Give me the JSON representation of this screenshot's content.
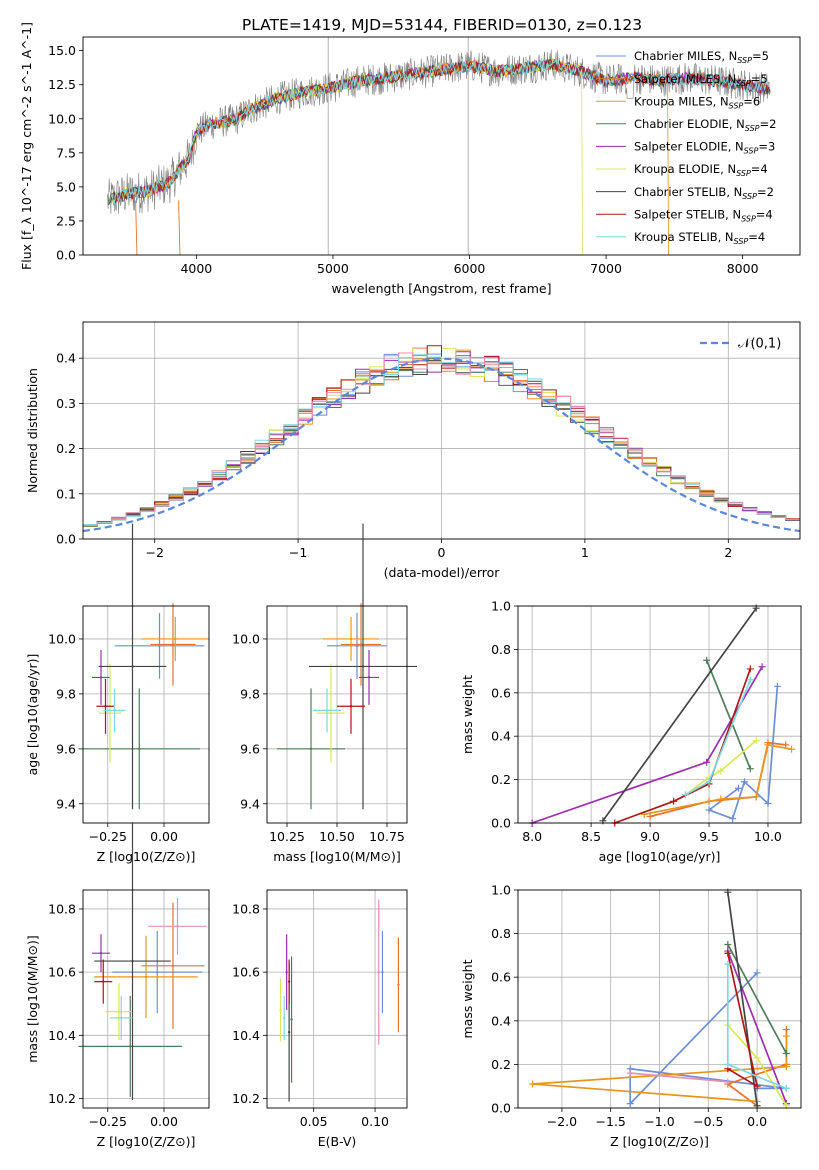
{
  "figure_title": "PLATE=1419, MJD=53144, FIBERID=0130, z=0.123",
  "models": [
    {
      "name": "Chabrier MILES",
      "nssp": "5",
      "color": "#6b8fd6"
    },
    {
      "name": "Salpeter MILES",
      "nssp": "5",
      "color": "#e8722a"
    },
    {
      "name": "Kroupa MILES",
      "nssp": "6",
      "color": "#e8951c"
    },
    {
      "name": "Chabrier ELODIE",
      "nssp": "2",
      "color": "#4f7d5b"
    },
    {
      "name": "Salpeter ELODIE",
      "nssp": "3",
      "color": "#9b2fae"
    },
    {
      "name": "Kroupa ELODIE",
      "nssp": "4",
      "color": "#d9e85a"
    },
    {
      "name": "Chabrier STELIB",
      "nssp": "2",
      "color": "#444444"
    },
    {
      "name": "Salpeter STELIB",
      "nssp": "4",
      "color": "#b01515"
    },
    {
      "name": "Kroupa STELIB",
      "nssp": "4",
      "color": "#7fd8df"
    }
  ],
  "chart_data": [
    {
      "id": "spectrum",
      "type": "line",
      "xlabel": "wavelength [Angstrom, rest frame]",
      "ylabel": "Flux [f_λ 10^-17 erg cm^-2 s^-1 A^-1]",
      "xlim": [
        3170,
        8420
      ],
      "ylim": [
        0,
        16
      ],
      "xticks": [
        4000,
        5000,
        6000,
        7000,
        8000
      ],
      "yticks": [
        0.0,
        2.5,
        5.0,
        7.5,
        10.0,
        12.5,
        15.0
      ],
      "grid": false,
      "legend": "right",
      "continuum": {
        "x": [
          3350,
          3500,
          3650,
          3800,
          3950,
          4000,
          4100,
          4200,
          4300,
          4400,
          4600,
          4800,
          5000,
          5200,
          5400,
          5600,
          5800,
          6000,
          6200,
          6400,
          6600,
          6800,
          7000,
          7200,
          7400,
          7600,
          7800,
          8000,
          8200
        ],
        "y": [
          4.0,
          4.5,
          4.7,
          5.3,
          7.2,
          9.0,
          9.6,
          9.8,
          10.0,
          10.7,
          11.5,
          12.0,
          12.3,
          12.8,
          13.0,
          13.3,
          13.6,
          13.9,
          13.5,
          13.7,
          14.0,
          13.5,
          12.8,
          13.0,
          12.8,
          13.0,
          12.8,
          12.5,
          12.2
        ]
      }
    },
    {
      "id": "residuals",
      "type": "bar",
      "xlabel": "(data-model)/error",
      "ylabel": "Normed distribution",
      "xlim": [
        -2.5,
        2.5
      ],
      "ylim": [
        0,
        0.48
      ],
      "xticks": [
        -2,
        -1,
        0,
        1,
        2
      ],
      "yticks": [
        0.0,
        0.1,
        0.2,
        0.3,
        0.4
      ],
      "grid": true,
      "legend": "top-right",
      "gaussian_label": "𝒩(0,1)",
      "bin_width": 0.1
    },
    {
      "id": "age_vs_Z",
      "type": "scatter",
      "xlabel": "Z [log10(Z/Z⊙)]",
      "ylabel": "age  [log10(age/yr)]",
      "xlim": [
        -0.36,
        0.2
      ],
      "ylim": [
        9.33,
        10.12
      ],
      "xticks": [
        -0.25,
        0.0
      ],
      "xticklabels": [
        "−0.25",
        "0.00"
      ],
      "yticks": [
        9.4,
        9.6,
        9.8,
        10.0
      ],
      "grid": true,
      "points": [
        {
          "model": 0,
          "x": -0.02,
          "xerr": 0.2,
          "y": 9.975,
          "yerr": 0.12
        },
        {
          "model": 1,
          "x": 0.04,
          "xerr": 0.1,
          "y": 9.98,
          "yerr": 0.15
        },
        {
          "model": 2,
          "x": 0.05,
          "xerr": 0.15,
          "y": 10.0,
          "yerr": 0.08
        },
        {
          "model": 3,
          "x": -0.11,
          "xerr": 0.27,
          "y": 9.6,
          "yerr": 0.22
        },
        {
          "model": 4,
          "x": -0.28,
          "xerr": 0.04,
          "y": 9.86,
          "yerr": 0.1
        },
        {
          "model": 5,
          "x": -0.24,
          "xerr": 0.05,
          "y": 9.73,
          "yerr": 0.18
        },
        {
          "model": 6,
          "x": -0.14,
          "xerr": 0.15,
          "y": 9.9,
          "yerr": 0.52
        },
        {
          "model": 7,
          "x": -0.26,
          "xerr": 0.04,
          "y": 9.755,
          "yerr": 0.1
        },
        {
          "model": 8,
          "x": -0.22,
          "xerr": 0.05,
          "y": 9.74,
          "yerr": 0.08
        }
      ]
    },
    {
      "id": "age_vs_mass",
      "type": "scatter",
      "xlabel": "mass [log10(M/M⊙)]",
      "ylabel": "",
      "xlim": [
        10.15,
        10.85
      ],
      "ylim": [
        9.33,
        10.12
      ],
      "xticks": [
        10.25,
        10.5,
        10.75
      ],
      "yticks": [
        9.4,
        9.6,
        9.8,
        10.0
      ],
      "grid": true,
      "points": [
        {
          "model": 0,
          "x": 10.6,
          "xerr": 0.15,
          "y": 9.975,
          "yerr": 0.12
        },
        {
          "model": 1,
          "x": 10.62,
          "xerr": 0.1,
          "y": 9.98,
          "yerr": 0.15
        },
        {
          "model": 2,
          "x": 10.57,
          "xerr": 0.14,
          "y": 10.0,
          "yerr": 0.08
        },
        {
          "model": 3,
          "x": 10.37,
          "xerr": 0.17,
          "y": 9.6,
          "yerr": 0.22
        },
        {
          "model": 4,
          "x": 10.66,
          "xerr": 0.05,
          "y": 9.86,
          "yerr": 0.1
        },
        {
          "model": 5,
          "x": 10.47,
          "xerr": 0.07,
          "y": 9.73,
          "yerr": 0.18
        },
        {
          "model": 6,
          "x": 10.63,
          "xerr": 0.27,
          "y": 9.9,
          "yerr": 0.52
        },
        {
          "model": 7,
          "x": 10.57,
          "xerr": 0.07,
          "y": 9.755,
          "yerr": 0.1
        },
        {
          "model": 8,
          "x": 10.45,
          "xerr": 0.07,
          "y": 9.74,
          "yerr": 0.08
        }
      ]
    },
    {
      "id": "weight_vs_age",
      "type": "line",
      "xlabel": "age  [log10(age/yr)]",
      "ylabel": "mass weight",
      "xlim": [
        7.88,
        10.28
      ],
      "ylim": [
        0,
        1
      ],
      "xticks": [
        8.0,
        8.5,
        9.0,
        9.5,
        10.0
      ],
      "yticks": [
        0.0,
        0.2,
        0.4,
        0.6,
        0.8,
        1.0
      ],
      "grid": true,
      "series": [
        {
          "model": 0,
          "x": [
            10.08,
            10.0,
            9.8,
            9.7,
            9.5,
            9.75
          ],
          "y": [
            0.63,
            0.09,
            0.19,
            0.02,
            0.06,
            0.16
          ]
        },
        {
          "model": 1,
          "x": [
            10.15,
            10.0,
            9.9,
            9.5,
            9.0
          ],
          "y": [
            0.36,
            0.37,
            0.12,
            0.1,
            0.03
          ]
        },
        {
          "model": 2,
          "x": [
            10.2,
            10.0,
            9.9,
            9.6,
            8.95
          ],
          "y": [
            0.34,
            0.36,
            0.12,
            0.11,
            0.04
          ]
        },
        {
          "model": 3,
          "x": [
            9.48,
            9.85
          ],
          "y": [
            0.75,
            0.25
          ]
        },
        {
          "model": 4,
          "x": [
            9.95,
            9.48,
            8.0
          ],
          "y": [
            0.72,
            0.28,
            0.0
          ]
        },
        {
          "model": 5,
          "x": [
            9.9,
            9.6,
            9.5,
            9.3
          ],
          "y": [
            0.38,
            0.24,
            0.21,
            0.13
          ]
        },
        {
          "model": 6,
          "x": [
            8.6,
            9.9
          ],
          "y": [
            0.01,
            0.99
          ]
        },
        {
          "model": 7,
          "x": [
            9.85,
            9.5,
            9.2,
            8.7
          ],
          "y": [
            0.71,
            0.18,
            0.1,
            0.0
          ]
        },
        {
          "model": 8,
          "x": [
            9.85,
            9.5,
            9.3
          ],
          "y": [
            0.66,
            0.19,
            0.13
          ]
        }
      ]
    },
    {
      "id": "mass_vs_Z",
      "type": "scatter",
      "xlabel": "Z [log10(Z/Z⊙)]",
      "ylabel": "mass [log10(M/M⊙)]",
      "xlim": [
        -0.36,
        0.2
      ],
      "ylim": [
        10.17,
        10.86
      ],
      "xticks": [
        -0.25,
        0.0
      ],
      "xticklabels": [
        "−0.25",
        "0.00"
      ],
      "yticks": [
        10.2,
        10.4,
        10.6,
        10.8
      ],
      "grid": true,
      "points": [
        {
          "model": 0,
          "x": -0.03,
          "xerr": 0.2,
          "y": 10.6,
          "yerr": 0.13
        },
        {
          "model": 1,
          "x": 0.04,
          "xerr": 0.14,
          "y": 10.62,
          "yerr": 0.2
        },
        {
          "model": 2,
          "x": -0.08,
          "xerr": 0.23,
          "y": 10.585,
          "yerr": 0.13
        },
        {
          "model": 3,
          "x": -0.15,
          "xerr": 0.23,
          "y": 10.365,
          "yerr": 0.16
        },
        {
          "model": 4,
          "x": -0.28,
          "xerr": 0.04,
          "y": 10.66,
          "yerr": 0.06
        },
        {
          "model": 5,
          "x": -0.2,
          "xerr": 0.06,
          "y": 10.475,
          "yerr": 0.09
        },
        {
          "model": 6,
          "x": -0.14,
          "xerr": 0.17,
          "y": 10.635,
          "yerr": 0.44
        },
        {
          "model": 7,
          "x": -0.27,
          "xerr": 0.04,
          "y": 10.57,
          "yerr": 0.07
        },
        {
          "model": 8,
          "x": -0.19,
          "xerr": 0.05,
          "y": 10.455,
          "yerr": 0.07
        },
        {
          "model": 9,
          "x": 0.06,
          "xerr": 0.13,
          "y": 10.745,
          "yerr": 0.09
        }
      ]
    },
    {
      "id": "mass_vs_ebv",
      "type": "scatter",
      "xlabel": "E(B-V)",
      "ylabel": "",
      "xlim": [
        0.012,
        0.126
      ],
      "ylim": [
        10.17,
        10.86
      ],
      "xticks": [
        0.05,
        0.1
      ],
      "yticks": [
        10.2,
        10.4,
        10.6,
        10.8
      ],
      "grid": true,
      "points": [
        {
          "model": 0,
          "x": 0.106,
          "y": 10.6,
          "yerr": 0.13
        },
        {
          "model": 1,
          "x": 0.119,
          "y": 10.56,
          "yerr": 0.15
        },
        {
          "model": 3,
          "x": 0.032,
          "y": 10.45,
          "yerr": 0.2
        },
        {
          "model": 4,
          "x": 0.028,
          "y": 10.6,
          "yerr": 0.12
        },
        {
          "model": 5,
          "x": 0.023,
          "y": 10.48,
          "yerr": 0.1
        },
        {
          "model": 6,
          "x": 0.03,
          "y": 10.41,
          "yerr": 0.22
        },
        {
          "model": 7,
          "x": 0.03,
          "y": 10.57,
          "yerr": 0.07
        },
        {
          "model": 8,
          "x": 0.026,
          "y": 10.455,
          "yerr": 0.07
        },
        {
          "model": 9,
          "x": 0.103,
          "y": 10.6,
          "yerr": 0.23
        }
      ]
    },
    {
      "id": "weight_vs_Z",
      "type": "line",
      "xlabel": "Z [log10(Z/Z⊙)]",
      "ylabel": "mass weight",
      "xlim": [
        -2.45,
        0.45
      ],
      "ylim": [
        0,
        1
      ],
      "xticks": [
        -2.0,
        -1.5,
        -1.0,
        -0.5,
        0.0
      ],
      "xticklabels": [
        "−2.0",
        "−1.5",
        "−1.0",
        "−0.5",
        "0.0"
      ],
      "yticks": [
        0.0,
        0.2,
        0.4,
        0.6,
        0.8,
        1.0
      ],
      "grid": true,
      "series": [
        {
          "model": 0,
          "x": [
            0.0,
            -1.3,
            -1.3,
            0.3,
            0.0
          ],
          "y": [
            0.62,
            0.02,
            0.18,
            0.09,
            0.09
          ]
        },
        {
          "model": 1,
          "x": [
            0.3,
            0.3,
            -0.3,
            0.0
          ],
          "y": [
            0.36,
            0.2,
            0.11,
            0.01
          ]
        },
        {
          "model": 2,
          "x": [
            0.3,
            0.3,
            -2.3,
            0.0
          ],
          "y": [
            0.33,
            0.19,
            0.11,
            0.03
          ]
        },
        {
          "model": 3,
          "x": [
            -0.3,
            0.3
          ],
          "y": [
            0.75,
            0.25
          ]
        },
        {
          "model": 4,
          "x": [
            -0.3,
            0.3,
            0.3
          ],
          "y": [
            0.72,
            0.02,
            0.02
          ]
        },
        {
          "model": 5,
          "x": [
            -0.3,
            0.0,
            0.3
          ],
          "y": [
            0.38,
            0.23,
            0.01
          ]
        },
        {
          "model": 6,
          "x": [
            -0.3,
            0.0
          ],
          "y": [
            0.99,
            0.01
          ]
        },
        {
          "model": 7,
          "x": [
            -0.3,
            0.0,
            -0.3
          ],
          "y": [
            0.71,
            0.1,
            0.18
          ]
        },
        {
          "model": 8,
          "x": [
            -0.3,
            -0.3,
            0.3
          ],
          "y": [
            0.66,
            0.2,
            0.09
          ]
        },
        {
          "model": 9,
          "x": [
            -1.3,
            -0.3
          ],
          "y": [
            0.16,
            0.12
          ]
        }
      ]
    }
  ]
}
